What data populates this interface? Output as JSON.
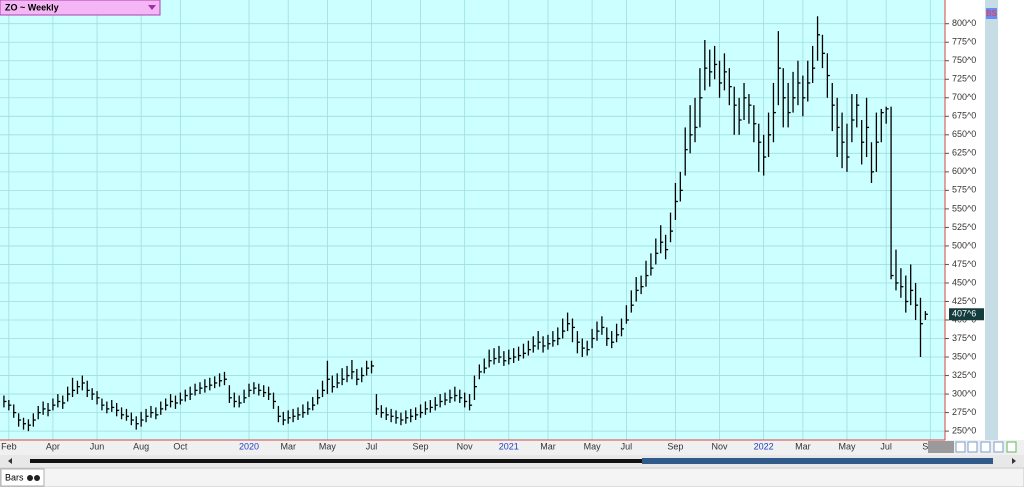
{
  "chart_data": {
    "type": "ohlc",
    "title": "ZO ~ Weekly",
    "color": "#000000",
    "background": "#ccffff",
    "grid": true,
    "ylim": [
      238,
      832
    ],
    "yticks": [
      {
        "value": 250,
        "label": "250^0"
      },
      {
        "value": 275,
        "label": "275^0"
      },
      {
        "value": 300,
        "label": "300^0"
      },
      {
        "value": 325,
        "label": "325^0"
      },
      {
        "value": 350,
        "label": "350^0"
      },
      {
        "value": 375,
        "label": "375^0"
      },
      {
        "value": 400,
        "label": "400^0"
      },
      {
        "value": 425,
        "label": "425^0"
      },
      {
        "value": 450,
        "label": "450^0"
      },
      {
        "value": 475,
        "label": "475^0"
      },
      {
        "value": 500,
        "label": "500^0"
      },
      {
        "value": 525,
        "label": "525^0"
      },
      {
        "value": 550,
        "label": "550^0"
      },
      {
        "value": 575,
        "label": "575^0"
      },
      {
        "value": 600,
        "label": "600^0"
      },
      {
        "value": 625,
        "label": "625^0"
      },
      {
        "value": 650,
        "label": "650^0"
      },
      {
        "value": 675,
        "label": "675^0"
      },
      {
        "value": 700,
        "label": "700^0"
      },
      {
        "value": 725,
        "label": "725^0"
      },
      {
        "value": 750,
        "label": "750^0"
      },
      {
        "value": 775,
        "label": "775^0"
      },
      {
        "value": 800,
        "label": "800^0"
      }
    ],
    "xlim": [
      -0.8,
      192
    ],
    "xticks": [
      {
        "value": 1,
        "label": "Feb"
      },
      {
        "value": 10,
        "label": "Apr"
      },
      {
        "value": 19,
        "label": "Jun"
      },
      {
        "value": 28,
        "label": "Aug"
      },
      {
        "value": 36,
        "label": "Oct"
      },
      {
        "value": 50,
        "label": "2020"
      },
      {
        "value": 58,
        "label": "Mar"
      },
      {
        "value": 66,
        "label": "May"
      },
      {
        "value": 75,
        "label": "Jul"
      },
      {
        "value": 85,
        "label": "Sep"
      },
      {
        "value": 94,
        "label": "Nov"
      },
      {
        "value": 103,
        "label": "2021"
      },
      {
        "value": 111,
        "label": "Mar"
      },
      {
        "value": 120,
        "label": "May"
      },
      {
        "value": 127,
        "label": "Jul"
      },
      {
        "value": 137,
        "label": "Sep"
      },
      {
        "value": 146,
        "label": "Nov"
      },
      {
        "value": 155,
        "label": "2022"
      },
      {
        "value": 163,
        "label": "Mar"
      },
      {
        "value": 172,
        "label": "May"
      },
      {
        "value": 180,
        "label": "Jul"
      },
      {
        "value": 189,
        "label": "Sep"
      }
    ],
    "last_price": {
      "value": 407.75,
      "label": "407^6"
    },
    "high": [
      298,
      292,
      286,
      274,
      268,
      266,
      274,
      284,
      290,
      288,
      294,
      300,
      298,
      310,
      322,
      318,
      325,
      318,
      308,
      304,
      294,
      290,
      292,
      288,
      282,
      280,
      275,
      270,
      276,
      280,
      284,
      282,
      290,
      294,
      300,
      298,
      302,
      306,
      310,
      314,
      316,
      320,
      322,
      324,
      328,
      330,
      312,
      302,
      298,
      306,
      314,
      316,
      314,
      312,
      310,
      302,
      284,
      276,
      278,
      280,
      282,
      286,
      290,
      296,
      306,
      318,
      345,
      325,
      328,
      335,
      338,
      346,
      334,
      336,
      345,
      345,
      300,
      285,
      282,
      280,
      278,
      275,
      278,
      280,
      282,
      286,
      290,
      292,
      296,
      300,
      302,
      306,
      310,
      306,
      302,
      300,
      325,
      340,
      348,
      360,
      362,
      365,
      358,
      360,
      362,
      364,
      368,
      372,
      378,
      385,
      378,
      380,
      385,
      390,
      402,
      410,
      402,
      385,
      375,
      372,
      388,
      398,
      405,
      390,
      385,
      395,
      402,
      420,
      440,
      458,
      460,
      480,
      490,
      510,
      528,
      515,
      545,
      585,
      600,
      660,
      690,
      700,
      740,
      778,
      765,
      770,
      750,
      760,
      740,
      715,
      700,
      720,
      705,
      690,
      665,
      650,
      680,
      720,
      790,
      740,
      720,
      735,
      750,
      730,
      750,
      770,
      810,
      785,
      760,
      720,
      700,
      680,
      665,
      705,
      705,
      670,
      700,
      640,
      680,
      685,
      688,
      688,
      495,
      470,
      460,
      475,
      450,
      430,
      412
    ],
    "low": [
      282,
      278,
      268,
      256,
      252,
      250,
      256,
      266,
      272,
      270,
      278,
      282,
      280,
      290,
      296,
      300,
      305,
      296,
      292,
      286,
      278,
      274,
      276,
      270,
      266,
      264,
      258,
      252,
      256,
      262,
      268,
      266,
      272,
      278,
      282,
      280,
      286,
      290,
      292,
      298,
      300,
      302,
      305,
      308,
      310,
      312,
      288,
      282,
      282,
      288,
      296,
      300,
      298,
      296,
      292,
      280,
      262,
      258,
      260,
      262,
      265,
      268,
      272,
      278,
      286,
      296,
      300,
      302,
      308,
      312,
      316,
      320,
      312,
      316,
      325,
      328,
      272,
      268,
      265,
      262,
      260,
      258,
      260,
      262,
      265,
      268,
      272,
      275,
      278,
      282,
      285,
      288,
      290,
      288,
      282,
      278,
      292,
      320,
      328,
      336,
      340,
      342,
      338,
      340,
      342,
      345,
      348,
      352,
      356,
      360,
      356,
      360,
      364,
      366,
      375,
      385,
      370,
      355,
      350,
      352,
      362,
      372,
      380,
      365,
      362,
      370,
      378,
      395,
      410,
      425,
      435,
      445,
      460,
      475,
      490,
      482,
      505,
      535,
      560,
      595,
      625,
      640,
      660,
      710,
      715,
      725,
      700,
      710,
      690,
      650,
      650,
      670,
      665,
      640,
      600,
      595,
      620,
      640,
      690,
      660,
      660,
      680,
      690,
      675,
      695,
      720,
      750,
      740,
      700,
      655,
      620,
      605,
      600,
      640,
      660,
      610,
      620,
      585,
      600,
      640,
      665,
      455,
      440,
      430,
      410,
      420,
      400,
      350,
      400
    ],
    "close": [
      290,
      285,
      275,
      265,
      260,
      258,
      265,
      275,
      280,
      278,
      285,
      290,
      288,
      300,
      305,
      310,
      315,
      305,
      300,
      295,
      285,
      280,
      282,
      278,
      272,
      270,
      265,
      260,
      265,
      270,
      275,
      272,
      280,
      285,
      290,
      288,
      292,
      298,
      300,
      305,
      308,
      310,
      312,
      315,
      318,
      320,
      295,
      290,
      288,
      295,
      305,
      308,
      305,
      302,
      300,
      290,
      270,
      265,
      268,
      270,
      272,
      275,
      280,
      285,
      295,
      305,
      320,
      310,
      315,
      320,
      325,
      330,
      320,
      325,
      335,
      338,
      280,
      275,
      272,
      270,
      268,
      265,
      268,
      270,
      272,
      275,
      280,
      282,
      285,
      290,
      292,
      295,
      298,
      295,
      290,
      285,
      310,
      330,
      335,
      345,
      348,
      350,
      345,
      348,
      350,
      352,
      355,
      360,
      365,
      370,
      365,
      368,
      372,
      375,
      385,
      395,
      390,
      370,
      362,
      360,
      375,
      385,
      390,
      375,
      370,
      380,
      388,
      400,
      420,
      440,
      445,
      460,
      470,
      490,
      505,
      495,
      520,
      560,
      575,
      630,
      650,
      660,
      700,
      740,
      735,
      745,
      720,
      735,
      715,
      690,
      670,
      700,
      690,
      665,
      640,
      620,
      650,
      680,
      740,
      700,
      680,
      700,
      720,
      700,
      720,
      740,
      785,
      760,
      730,
      690,
      660,
      640,
      620,
      670,
      690,
      640,
      660,
      600,
      640,
      680,
      685,
      460,
      450,
      445,
      425,
      440,
      420,
      395,
      407.75
    ]
  },
  "toolbar": {
    "view_tab": "Bars",
    "side_icon": "BS"
  }
}
